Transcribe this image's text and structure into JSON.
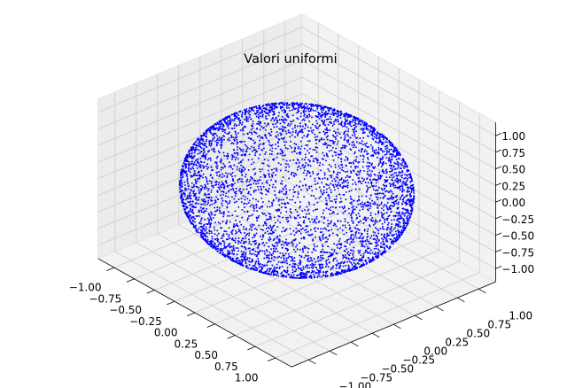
{
  "chart_data": {
    "type": "scatter",
    "projection": "3d",
    "title": "Valori uniformi",
    "xlabel": "",
    "ylabel": "",
    "zlabel": "",
    "grid": true,
    "marker_color": "#0000ff",
    "pane_color": "#f2f2f2",
    "grid_color": "#cccccc",
    "distribution": "uniform on unit sphere surface",
    "radius": 1.0,
    "point_count_estimate": 5000,
    "xlim": [
      -1.0,
      1.0
    ],
    "ylim": [
      -1.0,
      1.0
    ],
    "zlim": [
      -1.0,
      1.0
    ],
    "x_ticks": [
      "−1.00",
      "−0.75",
      "−0.50",
      "−0.25",
      "0.00",
      "0.25",
      "0.50",
      "0.75",
      "1.00"
    ],
    "y_ticks": [
      "−1.00",
      "−0.75",
      "−0.50",
      "−0.25",
      "0.00",
      "0.25",
      "0.50",
      "0.75",
      "1.00"
    ],
    "z_ticks": [
      "−1.00",
      "−0.75",
      "−0.50",
      "−0.25",
      "0.00",
      "0.25",
      "0.50",
      "0.75",
      "1.00"
    ]
  }
}
